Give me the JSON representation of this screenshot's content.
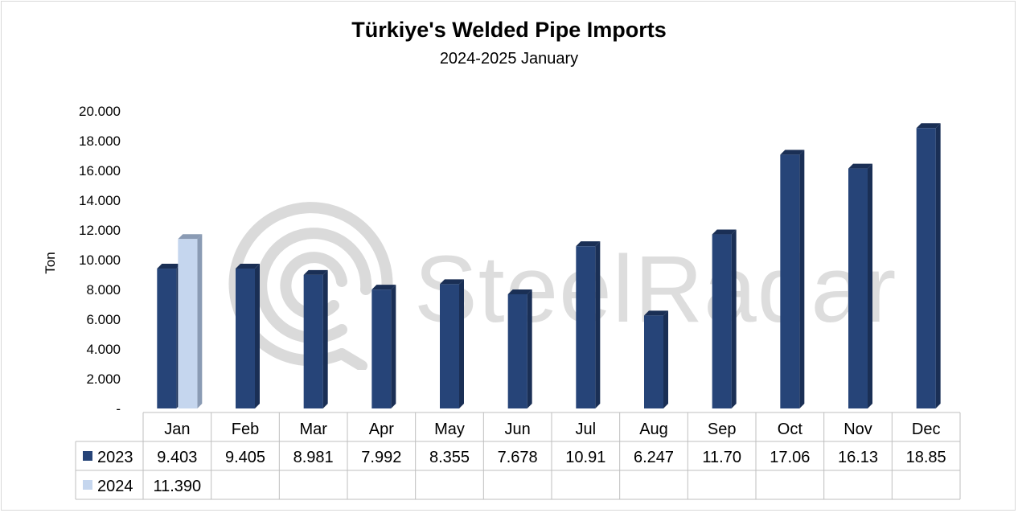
{
  "title": "Türkiye's Welded Pipe Imports",
  "subtitle": "2024-2025 January",
  "watermark_text": "SteelRadar",
  "colors": {
    "series_2023": "#264478",
    "series_2023_side": "#1a2f55",
    "series_2024": "#c5d6ee",
    "series_2024_side": "#8a9bb4",
    "grid": "#d9d9d9",
    "watermark": "#dadada"
  },
  "chart_data": {
    "type": "bar",
    "title": "Türkiye's Welded Pipe Imports",
    "subtitle": "2024-2025 January",
    "ylabel": "Ton",
    "xlabel": "",
    "ylim": [
      0,
      20000
    ],
    "yticks": [
      "-",
      "2.000",
      "4.000",
      "6.000",
      "8.000",
      "10.000",
      "12.000",
      "14.000",
      "16.000",
      "18.000",
      "20.000"
    ],
    "grid": false,
    "categories": [
      "Jan",
      "Feb",
      "Mar",
      "Apr",
      "May",
      "Jun",
      "Jul",
      "Aug",
      "Sep",
      "Oct",
      "Nov",
      "Dec"
    ],
    "series": [
      {
        "name": "2023",
        "values": [
          9403,
          9405,
          8981,
          7992,
          8355,
          7678,
          10910,
          6247,
          11700,
          17060,
          16130,
          18850
        ],
        "labels": [
          "9.403",
          "9.405",
          "8.981",
          "7.992",
          "8.355",
          "7.678",
          "10.91",
          "6.247",
          "11.70",
          "17.06",
          "16.13",
          "18.85"
        ]
      },
      {
        "name": "2024",
        "values": [
          11390,
          null,
          null,
          null,
          null,
          null,
          null,
          null,
          null,
          null,
          null,
          null
        ],
        "labels": [
          "11.390",
          "",
          "",
          "",
          "",
          "",
          "",
          "",
          "",
          "",
          "",
          ""
        ]
      }
    ],
    "legend": "data-table"
  }
}
